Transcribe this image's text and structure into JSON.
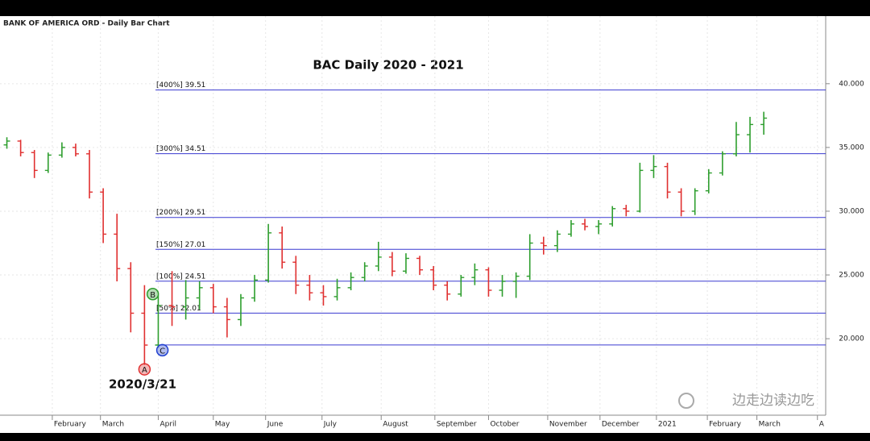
{
  "header": "BANK OF AMERICA ORD - Daily Bar Chart",
  "watermark": "边走边读边吃",
  "chart_data": {
    "type": "ohlc",
    "title": "BAC Daily 2020 - 2021",
    "annotation": "2020/3/21",
    "up_color": "#2e9e2e",
    "down_color": "#e03030",
    "grid": true,
    "x": [
      0,
      1,
      2,
      3,
      4,
      5,
      6,
      7,
      8,
      9,
      10,
      11,
      12,
      13,
      14,
      15,
      16,
      17,
      18,
      19,
      20,
      21,
      22,
      23,
      24,
      25,
      26,
      27,
      28,
      29,
      30,
      31,
      32,
      33,
      34,
      35,
      36,
      37,
      38,
      39,
      40,
      41,
      42,
      43,
      44,
      45,
      46,
      47,
      48,
      49,
      50,
      51,
      52,
      53,
      54,
      55
    ],
    "open": [
      35.2,
      35.5,
      34.6,
      33.2,
      34.4,
      35.0,
      34.5,
      31.5,
      28.2,
      25.5,
      22.0,
      19.5,
      22.6,
      22.5,
      23.2,
      24.0,
      22.5,
      21.5,
      23.2,
      24.6,
      28.3,
      26.0,
      24.2,
      23.6,
      23.3,
      24.0,
      24.8,
      25.7,
      26.4,
      25.3,
      26.3,
      25.4,
      24.2,
      23.5,
      24.8,
      25.4,
      23.8,
      24.5,
      24.9,
      27.5,
      27.3,
      28.2,
      29.0,
      28.8,
      29.0,
      30.2,
      30.0,
      33.2,
      33.5,
      31.5,
      30.0,
      31.6,
      33.0,
      34.5,
      36.0,
      36.8
    ],
    "high": [
      35.8,
      35.6,
      34.8,
      34.6,
      35.4,
      35.3,
      34.8,
      31.8,
      29.8,
      26.0,
      24.2,
      23.4,
      25.3,
      24.6,
      24.5,
      24.3,
      23.2,
      23.5,
      25.0,
      29.0,
      28.8,
      26.5,
      25.0,
      24.2,
      24.7,
      25.2,
      26.0,
      27.6,
      26.8,
      26.7,
      26.5,
      25.7,
      24.5,
      25.0,
      25.9,
      25.6,
      25.0,
      25.2,
      28.2,
      28.0,
      28.5,
      29.3,
      29.4,
      29.3,
      30.4,
      30.5,
      33.8,
      34.4,
      33.8,
      31.8,
      31.8,
      33.3,
      34.7,
      37.0,
      37.4,
      37.8
    ],
    "low": [
      34.9,
      34.3,
      32.6,
      33.0,
      34.2,
      34.3,
      31.0,
      27.5,
      24.5,
      20.5,
      17.95,
      19.3,
      21.0,
      21.5,
      22.3,
      22.0,
      20.1,
      21.0,
      22.9,
      24.4,
      25.5,
      23.5,
      23.0,
      22.6,
      23.0,
      23.8,
      24.5,
      25.3,
      24.9,
      25.1,
      25.0,
      23.8,
      23.0,
      23.3,
      24.2,
      23.3,
      23.3,
      23.2,
      24.6,
      26.6,
      26.8,
      28.0,
      28.5,
      28.2,
      28.8,
      29.6,
      29.9,
      32.6,
      31.0,
      29.6,
      29.7,
      31.4,
      32.8,
      34.3,
      34.6,
      36.0
    ],
    "close": [
      35.5,
      34.6,
      33.2,
      34.4,
      35.0,
      34.5,
      31.5,
      28.2,
      25.5,
      22.0,
      19.5,
      22.6,
      22.5,
      23.2,
      24.0,
      22.5,
      21.5,
      23.2,
      24.6,
      28.3,
      26.0,
      24.2,
      23.6,
      23.3,
      24.0,
      24.8,
      25.7,
      26.4,
      25.3,
      26.3,
      25.4,
      24.2,
      23.5,
      24.8,
      25.4,
      23.8,
      24.5,
      24.9,
      27.5,
      27.3,
      28.2,
      29.0,
      28.8,
      29.0,
      30.2,
      30.0,
      33.2,
      33.5,
      31.5,
      30.0,
      31.6,
      33.0,
      34.5,
      36.0,
      36.8,
      37.3
    ],
    "xlim": [
      -0.5,
      59.5
    ],
    "xticks": [
      {
        "value": 3.3,
        "label": "February"
      },
      {
        "value": 6.8,
        "label": "March"
      },
      {
        "value": 11.0,
        "label": "April"
      },
      {
        "value": 15.0,
        "label": "May"
      },
      {
        "value": 18.8,
        "label": "June"
      },
      {
        "value": 22.9,
        "label": "July"
      },
      {
        "value": 27.2,
        "label": "August"
      },
      {
        "value": 31.1,
        "label": "September"
      },
      {
        "value": 35.0,
        "label": "October"
      },
      {
        "value": 39.3,
        "label": "November"
      },
      {
        "value": 43.1,
        "label": "December"
      },
      {
        "value": 47.2,
        "label": "2021"
      },
      {
        "value": 50.9,
        "label": "February"
      },
      {
        "value": 54.5,
        "label": "March"
      },
      {
        "value": 58.9,
        "label": "A"
      }
    ],
    "ylim": [
      14.0,
      45.3
    ],
    "yticks": [
      {
        "value": 20,
        "label": "20.000"
      },
      {
        "value": 25,
        "label": "25.000"
      },
      {
        "value": 30,
        "label": "30.000"
      },
      {
        "value": 35,
        "label": "35.000"
      },
      {
        "value": 40,
        "label": "40.000"
      }
    ],
    "levels_from": 10.8,
    "levels": [
      {
        "value": 39.51,
        "label": "[400%] 39.51"
      },
      {
        "value": 34.51,
        "label": "[300%] 34.51"
      },
      {
        "value": 29.51,
        "label": "[200%] 29.51"
      },
      {
        "value": 27.01,
        "label": "[150%] 27.01"
      },
      {
        "value": 24.51,
        "label": "[100%] 24.51"
      },
      {
        "value": 22.01,
        "label": "[50%] 22.01"
      },
      {
        "value": 19.51
      }
    ],
    "points": [
      {
        "label": "A",
        "x": 10,
        "y": 17.6,
        "color": "#e03030"
      },
      {
        "label": "B",
        "x": 10.6,
        "y": 23.5,
        "color": "#2e9e2e"
      },
      {
        "label": "C",
        "x": 11.3,
        "y": 19.1,
        "color": "#2040d0"
      }
    ]
  }
}
